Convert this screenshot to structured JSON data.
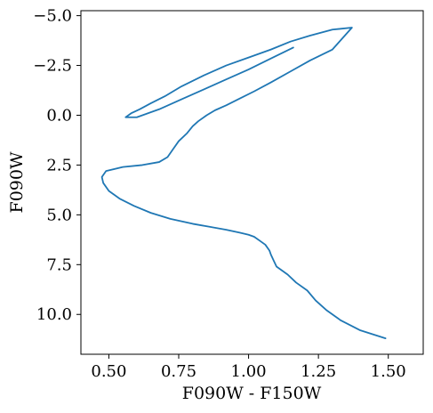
{
  "chart_data": {
    "type": "line",
    "title": "",
    "xlabel": "F090W - F150W",
    "ylabel": "F090W",
    "xlim": [
      0.4,
      1.625
    ],
    "ylim": [
      12.0,
      -5.25
    ],
    "y_inverted": true,
    "grid": false,
    "xticks": [
      0.5,
      0.75,
      1.0,
      1.25,
      1.5
    ],
    "xtick_labels": [
      "0.50",
      "0.75",
      "1.00",
      "1.25",
      "1.50"
    ],
    "yticks": [
      -5.0,
      -2.5,
      0.0,
      2.5,
      5.0,
      7.5,
      10.0
    ],
    "ytick_labels": [
      "−5.0",
      "−2.5",
      "0.0",
      "2.5",
      "5.0",
      "7.5",
      "10.0"
    ],
    "series": [
      {
        "color": "#1f77b4",
        "x": [
          1.49,
          1.4,
          1.33,
          1.28,
          1.24,
          1.21,
          1.17,
          1.14,
          1.12,
          1.1,
          1.09,
          1.08,
          1.075,
          1.06,
          1.04,
          1.02,
          1.0,
          0.97,
          0.92,
          0.86,
          0.8,
          0.72,
          0.65,
          0.59,
          0.54,
          0.5,
          0.48,
          0.475,
          0.49,
          0.55,
          0.62,
          0.68,
          0.71,
          0.73,
          0.75,
          0.78,
          0.8,
          0.82,
          0.85,
          0.88,
          0.92,
          0.97,
          1.02,
          1.08,
          1.15,
          1.22,
          1.3,
          1.37,
          1.3,
          1.22,
          1.15,
          1.08,
          1.0,
          0.92,
          0.84,
          0.76,
          0.7,
          0.65,
          0.61,
          0.58,
          0.56,
          0.6,
          0.68,
          0.76,
          0.84,
          0.92,
          1.0,
          1.08,
          1.16
        ],
        "y": [
          11.2,
          10.8,
          10.3,
          9.8,
          9.3,
          8.8,
          8.4,
          8.0,
          7.8,
          7.6,
          7.3,
          7.0,
          6.8,
          6.5,
          6.3,
          6.1,
          6.0,
          5.9,
          5.75,
          5.6,
          5.45,
          5.2,
          4.9,
          4.55,
          4.2,
          3.8,
          3.4,
          3.1,
          2.8,
          2.6,
          2.5,
          2.35,
          2.1,
          1.7,
          1.3,
          0.9,
          0.55,
          0.3,
          0.0,
          -0.25,
          -0.5,
          -0.85,
          -1.2,
          -1.65,
          -2.2,
          -2.75,
          -3.3,
          -4.4,
          -4.3,
          -4.0,
          -3.7,
          -3.3,
          -2.9,
          -2.5,
          -2.0,
          -1.45,
          -0.95,
          -0.6,
          -0.3,
          -0.1,
          0.1,
          0.1,
          -0.3,
          -0.8,
          -1.3,
          -1.8,
          -2.3,
          -2.85,
          -3.4
        ]
      }
    ]
  }
}
